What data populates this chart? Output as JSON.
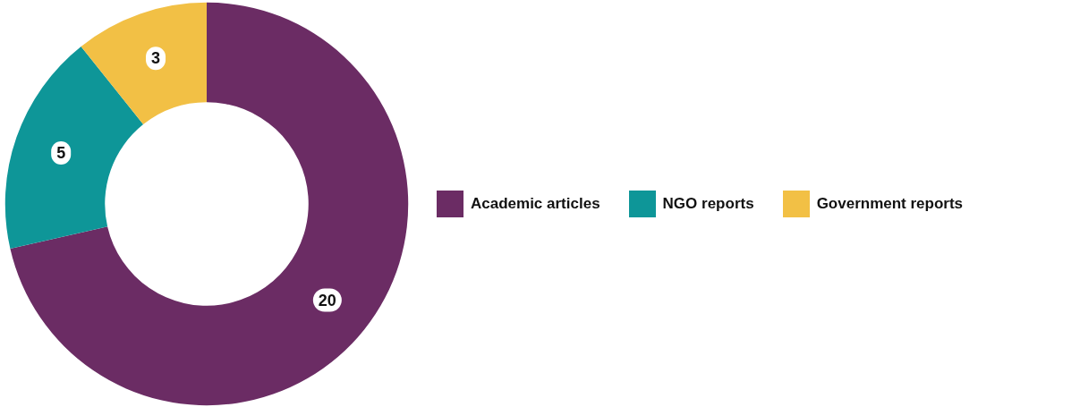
{
  "chart_data": {
    "type": "donut",
    "categories": [
      "Academic articles",
      "NGO reports",
      "Government reports"
    ],
    "values": [
      20,
      5,
      3
    ],
    "colors": [
      "#6b2c64",
      "#0e9698",
      "#f2c045"
    ],
    "data_labels": true,
    "legend": "right"
  }
}
